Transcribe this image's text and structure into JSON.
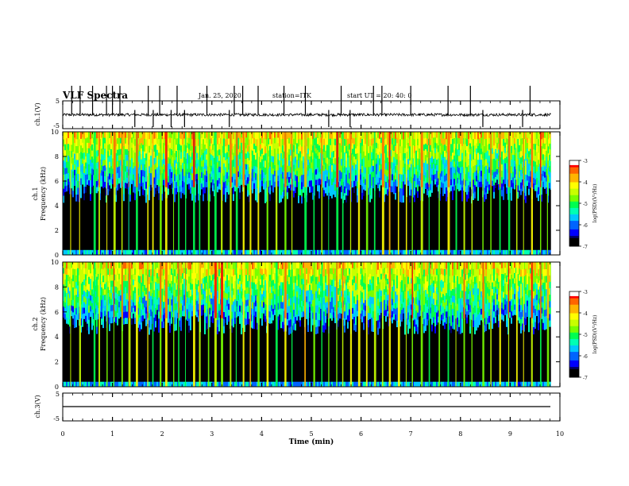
{
  "header": {
    "title": "VLF Spectra",
    "date": "Jan. 25, 2020",
    "station": "station=ITK",
    "start": "start UT =  20: 40: 0"
  },
  "chart_data": [
    {
      "type": "line",
      "panel": "ch1-waveform",
      "ylabel": "ch.1(V)",
      "ylim": [
        -5,
        5
      ],
      "yticks": [
        "5",
        "-5"
      ],
      "xlim": [
        0,
        10
      ],
      "baseline": 0,
      "noise_amplitude": 0.5,
      "spikes": [
        0.18,
        0.35,
        0.6,
        0.88,
        1.0,
        1.15,
        1.45,
        1.72,
        1.82,
        1.95,
        2.18,
        2.3,
        2.45,
        2.9,
        3.35,
        3.45,
        3.62,
        3.93,
        4.45,
        4.88,
        5.35,
        5.6,
        5.78,
        6.25,
        6.42,
        7.0,
        7.75,
        8.2,
        8.45,
        9.25,
        9.4
      ]
    },
    {
      "type": "heatmap",
      "panel": "ch1-spectrogram",
      "ylabel": "ch.1",
      "ylabel2": "Frequency (kHz)",
      "ylim": [
        0,
        10
      ],
      "yticks": [
        "0",
        "2",
        "4",
        "6",
        "8",
        "10"
      ],
      "xlim": [
        0,
        9.82
      ],
      "quiet_floor_khz": 5.0,
      "vertical_streaks_min": [
        0.15,
        0.33,
        0.62,
        0.72,
        0.88,
        1.02,
        1.18,
        1.32,
        1.47,
        1.7,
        1.8,
        1.95,
        2.06,
        2.22,
        2.32,
        2.46,
        2.62,
        2.74,
        2.92,
        3.05,
        3.18,
        3.36,
        3.48,
        3.62,
        3.76,
        3.92,
        4.1,
        4.28,
        4.46,
        4.6,
        4.86,
        5.04,
        5.2,
        5.34,
        5.5,
        5.62,
        5.78,
        5.94,
        6.1,
        6.26,
        6.42,
        6.56,
        6.74,
        6.9,
        7.02,
        7.2,
        7.36,
        7.56,
        7.74,
        7.9,
        8.06,
        8.22,
        8.44,
        8.6,
        8.78,
        8.96,
        9.12,
        9.26,
        9.42,
        9.6,
        9.74
      ],
      "colorbar": {
        "label": "log(PSD)(V²/Hz)",
        "range": [
          -7,
          -3
        ],
        "ticks": [
          "-3",
          "-4",
          "-5",
          "-6",
          "-7"
        ],
        "colors": [
          "#000000",
          "#0000ff",
          "#00c8ff",
          "#00ff80",
          "#c8ff00",
          "#ffff00",
          "#ff8000",
          "#ff0000",
          "#ffffff"
        ]
      }
    },
    {
      "type": "heatmap",
      "panel": "ch2-spectrogram",
      "ylabel": "ch.2",
      "ylabel2": "Frequency (kHz)",
      "ylim": [
        0,
        10
      ],
      "yticks": [
        "0",
        "2",
        "4",
        "6",
        "8",
        "10"
      ],
      "xlim": [
        0,
        9.82
      ],
      "quiet_floor_khz": 5.0,
      "vertical_streaks_min": [
        0.15,
        0.33,
        0.62,
        0.72,
        0.88,
        1.02,
        1.18,
        1.32,
        1.47,
        1.7,
        1.8,
        1.95,
        2.06,
        2.22,
        2.32,
        2.46,
        2.62,
        2.74,
        2.92,
        3.05,
        3.18,
        3.36,
        3.48,
        3.62,
        3.76,
        3.92,
        4.1,
        4.28,
        4.46,
        4.6,
        4.86,
        5.04,
        5.2,
        5.34,
        5.5,
        5.62,
        5.78,
        5.94,
        6.1,
        6.26,
        6.42,
        6.56,
        6.74,
        6.9,
        7.02,
        7.2,
        7.36,
        7.56,
        7.74,
        7.9,
        8.06,
        8.22,
        8.44,
        8.6,
        8.78,
        8.96,
        9.12,
        9.26,
        9.42,
        9.6,
        9.74
      ],
      "colorbar": {
        "label": "log(PSD)(V²/Hz)",
        "range": [
          -7,
          -3
        ],
        "ticks": [
          "-3",
          "-4",
          "-5",
          "-6",
          "-7"
        ],
        "colors": [
          "#000000",
          "#0000ff",
          "#00c8ff",
          "#00ff80",
          "#c8ff00",
          "#ffff00",
          "#ff8000",
          "#ff0000",
          "#ffffff"
        ]
      }
    },
    {
      "type": "line",
      "panel": "ch3-waveform",
      "ylabel": "ch.3(V)",
      "ylim": [
        -5,
        5
      ],
      "yticks": [
        "5",
        "-5"
      ],
      "xlim": [
        0,
        10
      ],
      "baseline": 0,
      "noise_amplitude": 0.05,
      "spikes": []
    }
  ],
  "xaxis": {
    "label": "Time (min)",
    "range": [
      0,
      10
    ],
    "ticks": [
      "0",
      "1",
      "2",
      "3",
      "4",
      "5",
      "6",
      "7",
      "8",
      "9",
      "10"
    ]
  }
}
